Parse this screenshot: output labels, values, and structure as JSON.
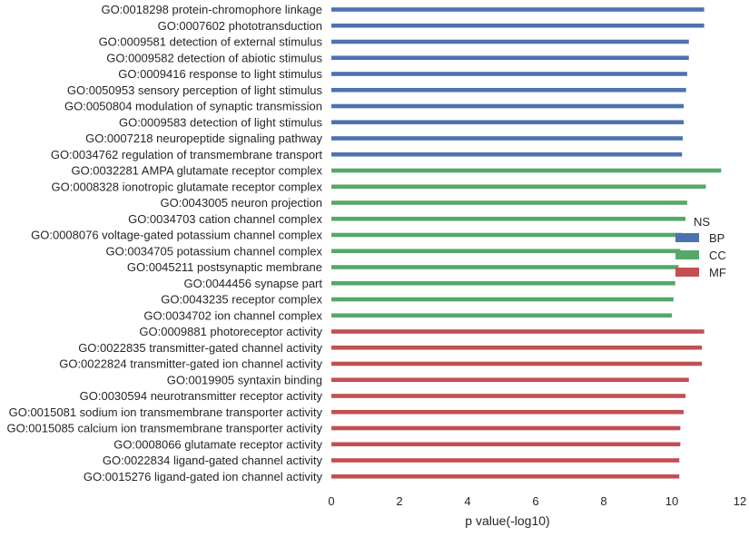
{
  "chart_data": {
    "type": "bar",
    "orientation": "horizontal",
    "title": "",
    "xlabel": "p value(-log10)",
    "ylabel": "",
    "xlim": [
      0,
      12
    ],
    "xticks": [
      "0",
      "2",
      "4",
      "6",
      "8",
      "10",
      "12"
    ],
    "grid": false,
    "legend": {
      "title": "NS",
      "placement": "right",
      "entries": [
        {
          "name": "BP",
          "color": "#4c72b0"
        },
        {
          "name": "CC",
          "color": "#55a868"
        },
        {
          "name": "MF",
          "color": "#c44e52"
        }
      ]
    },
    "categories": [
      {
        "label": "GO:0018298 protein-chromophore linkage",
        "value": 10.95,
        "group": "BP"
      },
      {
        "label": "GO:0007602 phototransduction",
        "value": 10.95,
        "group": "BP"
      },
      {
        "label": "GO:0009581 detection of external stimulus",
        "value": 10.5,
        "group": "BP"
      },
      {
        "label": "GO:0009582 detection of abiotic stimulus",
        "value": 10.5,
        "group": "BP"
      },
      {
        "label": "GO:0009416 response to light stimulus",
        "value": 10.45,
        "group": "BP"
      },
      {
        "label": "GO:0050953 sensory perception of light stimulus",
        "value": 10.42,
        "group": "BP"
      },
      {
        "label": "GO:0050804 modulation of synaptic transmission",
        "value": 10.35,
        "group": "BP"
      },
      {
        "label": "GO:0009583 detection of light stimulus",
        "value": 10.35,
        "group": "BP"
      },
      {
        "label": "GO:0007218 neuropeptide signaling pathway",
        "value": 10.32,
        "group": "BP"
      },
      {
        "label": "GO:0034762 regulation of transmembrane transport",
        "value": 10.3,
        "group": "BP"
      },
      {
        "label": "GO:0032281 AMPA glutamate receptor complex",
        "value": 11.45,
        "group": "CC"
      },
      {
        "label": "GO:0008328 ionotropic glutamate receptor complex",
        "value": 11.0,
        "group": "CC"
      },
      {
        "label": "GO:0043005 neuron projection",
        "value": 10.45,
        "group": "CC"
      },
      {
        "label": "GO:0034703 cation channel complex",
        "value": 10.4,
        "group": "CC"
      },
      {
        "label": "GO:0008076 voltage-gated potassium channel complex",
        "value": 10.3,
        "group": "CC"
      },
      {
        "label": "GO:0034705 potassium channel complex",
        "value": 10.25,
        "group": "CC"
      },
      {
        "label": "GO:0045211 postsynaptic membrane",
        "value": 10.2,
        "group": "CC"
      },
      {
        "label": "GO:0044456 synapse part",
        "value": 10.1,
        "group": "CC"
      },
      {
        "label": "GO:0043235 receptor complex",
        "value": 10.05,
        "group": "CC"
      },
      {
        "label": "GO:0034702 ion channel complex",
        "value": 10.0,
        "group": "CC"
      },
      {
        "label": "GO:0009881 photoreceptor activity",
        "value": 10.95,
        "group": "MF"
      },
      {
        "label": "GO:0022835 transmitter-gated channel activity",
        "value": 10.88,
        "group": "MF"
      },
      {
        "label": "GO:0022824 transmitter-gated ion channel activity",
        "value": 10.88,
        "group": "MF"
      },
      {
        "label": "GO:0019905 syntaxin binding",
        "value": 10.5,
        "group": "MF"
      },
      {
        "label": "GO:0030594 neurotransmitter receptor activity",
        "value": 10.4,
        "group": "MF"
      },
      {
        "label": "GO:0015081 sodium ion transmembrane transporter activity",
        "value": 10.35,
        "group": "MF"
      },
      {
        "label": "GO:0015085 calcium ion transmembrane transporter activity",
        "value": 10.25,
        "group": "MF"
      },
      {
        "label": "GO:0008066 glutamate receptor activity",
        "value": 10.25,
        "group": "MF"
      },
      {
        "label": "GO:0022834 ligand-gated channel activity",
        "value": 10.22,
        "group": "MF"
      },
      {
        "label": "GO:0015276 ligand-gated ion channel activity",
        "value": 10.22,
        "group": "MF"
      }
    ]
  }
}
